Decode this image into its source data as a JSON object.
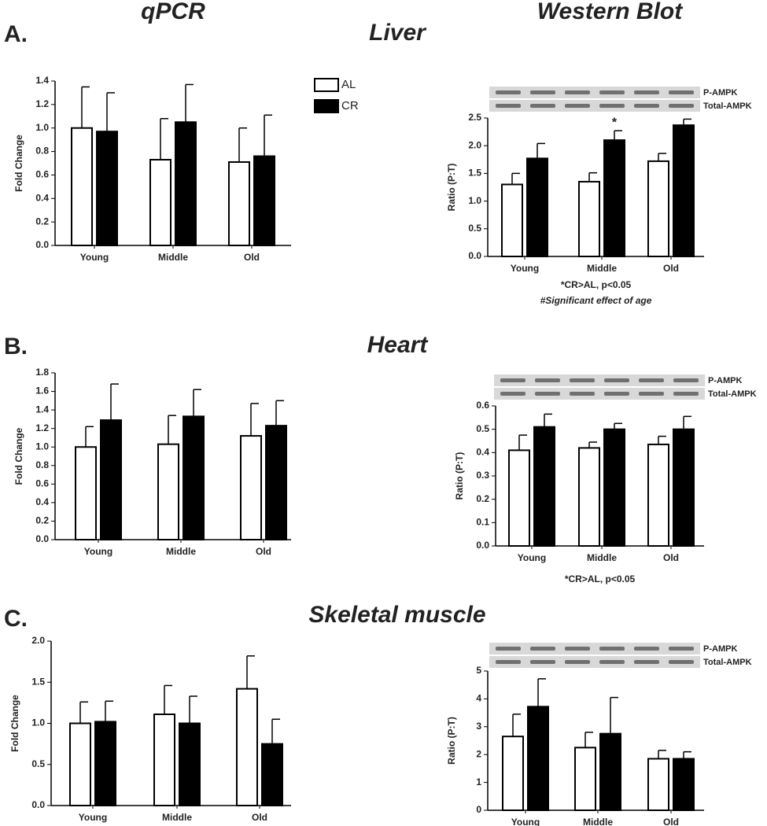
{
  "figure": {
    "columns": [
      "qPCR",
      "Western Blot"
    ],
    "panels": [
      {
        "label": "A.",
        "title": "Liver"
      },
      {
        "label": "B.",
        "title": "Heart"
      },
      {
        "label": "C.",
        "title": "Skeletal muscle"
      }
    ]
  },
  "chart_data": [
    {
      "type": "bar",
      "ylabel": "Fold Change",
      "categories": [
        "Young",
        "Middle",
        "Old"
      ],
      "series": [
        {
          "name": "AL",
          "color": "#ffffff",
          "values": [
            1.0,
            0.73,
            0.71
          ],
          "errors": [
            0.35,
            0.35,
            0.29
          ]
        },
        {
          "name": "CR",
          "color": "#000000",
          "values": [
            0.97,
            1.05,
            0.76
          ],
          "errors": [
            0.33,
            0.32,
            0.35
          ]
        }
      ],
      "ylim": [
        0,
        1.4
      ],
      "yticks": [
        {
          "value": 0,
          "label": "0.0"
        },
        0.2,
        0.4,
        0.6,
        0.8,
        {
          "value": 1,
          "label": "1.0"
        },
        1.2,
        1.4
      ]
    },
    {
      "type": "bar",
      "ylabel": "Ratio  (P:T)",
      "categories": [
        "Young",
        "Middle",
        "Old"
      ],
      "blot_labels": [
        "P-AMPK",
        "Total-AMPK"
      ],
      "series": [
        {
          "color": "#ffffff",
          "values": [
            1.3,
            1.35,
            1.72
          ],
          "errors": [
            0.2,
            0.16,
            0.14
          ]
        },
        {
          "color": "#000000",
          "values": [
            1.77,
            2.1,
            2.37
          ],
          "errors": [
            0.27,
            0.17,
            0.11
          ]
        }
      ],
      "annotations": [
        {
          "text": "*",
          "x": "Middle",
          "series": 1
        }
      ],
      "notes": [
        "*CR>AL, p<0.05",
        "#Significant effect of age"
      ],
      "ylim": [
        0,
        2.5
      ],
      "yticks": [
        {
          "value": 0,
          "label": "0.0"
        },
        0.5,
        {
          "value": 1,
          "label": "1.0"
        },
        1.5,
        {
          "value": 2,
          "label": "2.0"
        },
        2.5
      ]
    },
    {
      "type": "bar",
      "ylabel": "Fold Change",
      "categories": [
        "Young",
        "Middle",
        "Old"
      ],
      "series": [
        {
          "color": "#ffffff",
          "values": [
            1.0,
            1.03,
            1.12
          ],
          "errors": [
            0.22,
            0.31,
            0.35
          ]
        },
        {
          "color": "#000000",
          "values": [
            1.29,
            1.33,
            1.23
          ],
          "errors": [
            0.39,
            0.29,
            0.27
          ]
        }
      ],
      "ylim": [
        0,
        1.8
      ],
      "yticks": [
        {
          "value": 0,
          "label": "0.0"
        },
        0.2,
        0.4,
        0.6,
        0.8,
        {
          "value": 1,
          "label": "1.0"
        },
        1.2,
        1.4,
        1.6,
        1.8
      ]
    },
    {
      "type": "bar",
      "ylabel": "Ratio  (P:T)",
      "categories": [
        "Young",
        "Middle",
        "Old"
      ],
      "blot_labels": [
        "P-AMPK",
        "Total-AMPK"
      ],
      "series": [
        {
          "color": "#ffffff",
          "values": [
            0.41,
            0.42,
            0.435
          ],
          "errors": [
            0.065,
            0.025,
            0.035
          ]
        },
        {
          "color": "#000000",
          "values": [
            0.51,
            0.5,
            0.5
          ],
          "errors": [
            0.055,
            0.025,
            0.055
          ]
        }
      ],
      "notes": [
        "*CR>AL, p<0.05"
      ],
      "ylim": [
        0,
        0.6
      ],
      "yticks": [
        {
          "value": 0,
          "label": "0.0"
        },
        0.1,
        0.2,
        0.3,
        0.4,
        0.5,
        0.6
      ]
    },
    {
      "type": "bar",
      "ylabel": "Fold Change",
      "categories": [
        "Young",
        "Middle",
        "Old"
      ],
      "series": [
        {
          "color": "#ffffff",
          "values": [
            1.0,
            1.11,
            1.42
          ],
          "errors": [
            0.26,
            0.35,
            0.4
          ]
        },
        {
          "color": "#000000",
          "values": [
            1.02,
            1.0,
            0.75
          ],
          "errors": [
            0.25,
            0.33,
            0.3
          ]
        }
      ],
      "ylim": [
        0,
        2
      ],
      "yticks": [
        {
          "value": 0,
          "label": "0.0"
        },
        0.5,
        {
          "value": 1,
          "label": "1.0"
        },
        1.5,
        {
          "value": 2,
          "label": "2.0"
        }
      ]
    },
    {
      "type": "bar",
      "ylabel": "Ratio  (P:T)",
      "categories": [
        "Young",
        "Middle",
        "Old"
      ],
      "blot_labels": [
        "P-AMPK",
        "Total-AMPK"
      ],
      "series": [
        {
          "color": "#ffffff",
          "values": [
            2.65,
            2.25,
            1.85
          ],
          "errors": [
            0.8,
            0.55,
            0.3
          ]
        },
        {
          "color": "#000000",
          "values": [
            3.72,
            2.75,
            1.85
          ],
          "errors": [
            1.0,
            1.3,
            0.25
          ]
        }
      ],
      "ylim": [
        0,
        5
      ],
      "yticks": [
        0,
        1,
        2,
        3,
        4,
        5
      ]
    }
  ]
}
